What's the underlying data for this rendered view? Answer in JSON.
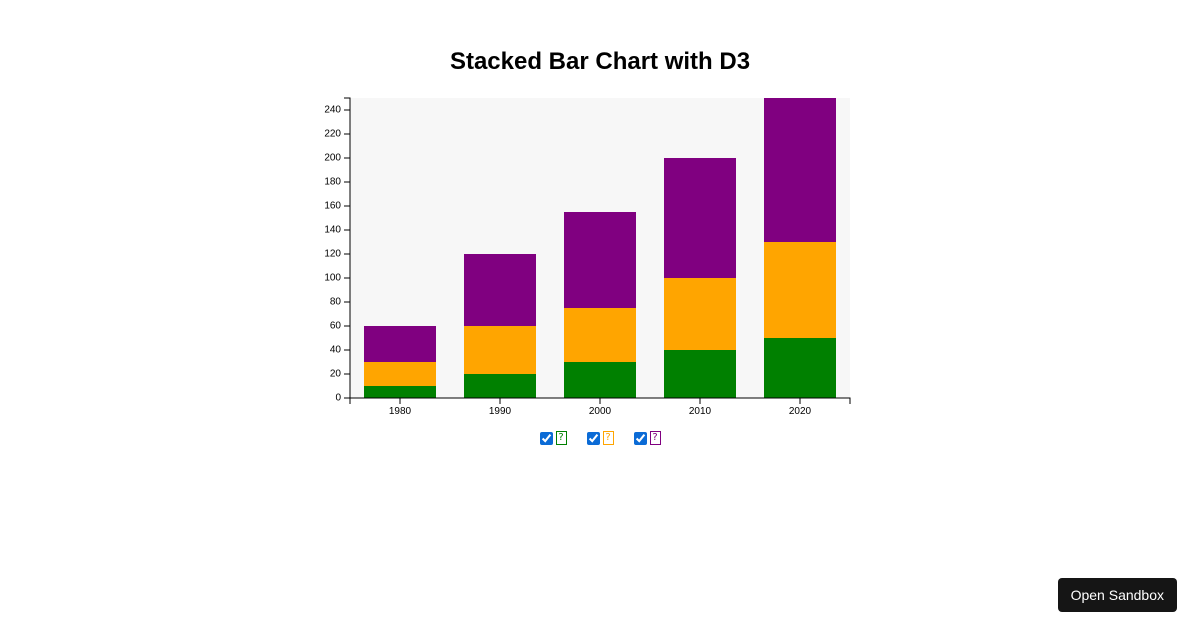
{
  "page": {
    "title": "Stacked Bar Chart with D3"
  },
  "chart_data": {
    "type": "bar",
    "stacked": true,
    "title": "Stacked Bar Chart with D3",
    "xlabel": "",
    "ylabel": "",
    "categories": [
      "1980",
      "1990",
      "2000",
      "2010",
      "2020"
    ],
    "series": [
      {
        "color": "#008000",
        "values": [
          10,
          20,
          30,
          40,
          50
        ]
      },
      {
        "color": "#FFA500",
        "values": [
          20,
          40,
          45,
          60,
          80
        ]
      },
      {
        "color": "#800080",
        "values": [
          30,
          60,
          80,
          100,
          120
        ]
      }
    ],
    "ylim": [
      0,
      250
    ],
    "yticks": [
      0,
      20,
      40,
      60,
      80,
      100,
      120,
      140,
      160,
      180,
      200,
      220,
      240
    ],
    "plot_background": "#f7f7f7",
    "grid": false
  },
  "legend": {
    "items": [
      {
        "checked": true,
        "glyph": "?",
        "color": "#008000"
      },
      {
        "checked": true,
        "glyph": "?",
        "color": "#FFA500"
      },
      {
        "checked": true,
        "glyph": "?",
        "color": "#800080"
      }
    ]
  },
  "sandbox": {
    "label": "Open Sandbox"
  }
}
